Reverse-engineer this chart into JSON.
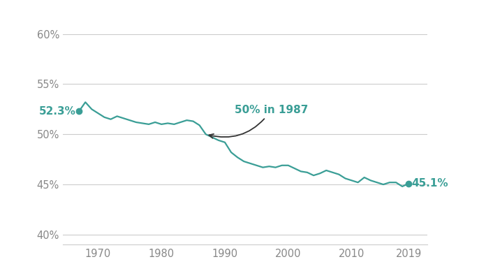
{
  "years": [
    1967,
    1968,
    1969,
    1970,
    1971,
    1972,
    1973,
    1974,
    1975,
    1976,
    1977,
    1978,
    1979,
    1980,
    1981,
    1982,
    1983,
    1984,
    1985,
    1986,
    1987,
    1988,
    1989,
    1990,
    1991,
    1992,
    1993,
    1994,
    1995,
    1996,
    1997,
    1998,
    1999,
    2000,
    2001,
    2002,
    2003,
    2004,
    2005,
    2006,
    2007,
    2008,
    2009,
    2010,
    2011,
    2012,
    2013,
    2014,
    2015,
    2016,
    2017,
    2018,
    2019
  ],
  "values": [
    52.3,
    53.2,
    52.5,
    52.1,
    51.7,
    51.5,
    51.8,
    51.6,
    51.4,
    51.2,
    51.1,
    51.0,
    51.2,
    51.0,
    51.1,
    51.0,
    51.2,
    51.4,
    51.3,
    50.9,
    50.0,
    49.7,
    49.4,
    49.2,
    48.2,
    47.7,
    47.3,
    47.1,
    46.9,
    46.7,
    46.8,
    46.7,
    46.9,
    46.9,
    46.6,
    46.3,
    46.2,
    45.9,
    46.1,
    46.4,
    46.2,
    46.0,
    45.6,
    45.4,
    45.2,
    45.7,
    45.4,
    45.2,
    45.0,
    45.2,
    45.2,
    44.8,
    45.1
  ],
  "line_color": "#3a9e96",
  "dot_color": "#3a9e96",
  "background_color": "#ffffff",
  "grid_color": "#cccccc",
  "label_start_text": "52.3%",
  "label_end_text": "45.1%",
  "annotation_text": "50% in 1987",
  "annotation_year": 1987,
  "annotation_value": 50.0,
  "ylim": [
    39.0,
    62.0
  ],
  "yticks": [
    40,
    45,
    50,
    55,
    60
  ],
  "ytick_labels": [
    "40%",
    "45%",
    "50%",
    "55%",
    "60%"
  ],
  "xticks": [
    1970,
    1980,
    1990,
    2000,
    2010,
    2019
  ],
  "tick_color": "#888888",
  "font_size_ticks": 10.5,
  "font_size_labels": 11,
  "font_size_annotation": 11
}
